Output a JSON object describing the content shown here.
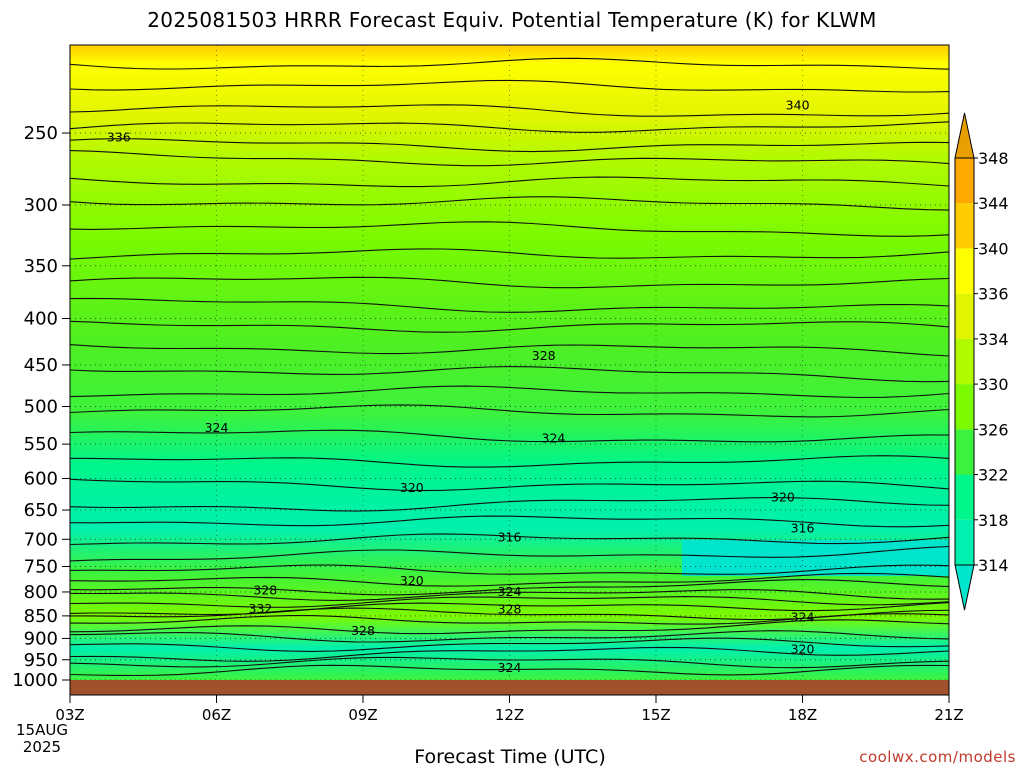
{
  "chart_data": {
    "type": "contour",
    "title": "2025081503 HRRR Forecast Equiv. Potential Temperature (K) for KLWM",
    "xlabel": "Forecast Time (UTC)",
    "ylabel": "",
    "x_ticks": [
      "03Z",
      "06Z",
      "09Z",
      "12Z",
      "15Z",
      "18Z",
      "21Z"
    ],
    "x_hours": [
      3,
      6,
      9,
      12,
      15,
      18,
      21
    ],
    "xlim": [
      3,
      21
    ],
    "date_label": [
      "15AUG",
      "2025"
    ],
    "y_ticks": [
      250,
      300,
      350,
      400,
      450,
      500,
      550,
      600,
      650,
      700,
      750,
      800,
      850,
      900,
      950,
      1000
    ],
    "ylim": [
      200,
      1000
    ],
    "y_scale": "log-pressure",
    "grid": true,
    "colorbar": {
      "levels": [
        314,
        318,
        322,
        326,
        330,
        334,
        336,
        340,
        344,
        348
      ],
      "tick_labels": [
        "314",
        "318",
        "322",
        "326",
        "330",
        "334",
        "336",
        "340",
        "344",
        "348"
      ],
      "extend": "both",
      "colors": [
        "#00e5cc",
        "#00f0b0",
        "#00f58a",
        "#3df23d",
        "#7cfa00",
        "#b2fa00",
        "#e2f500",
        "#ffff00",
        "#ffcc00",
        "#ffa800",
        "#e8a000"
      ]
    },
    "contour_labels": [
      {
        "value": "340",
        "x": 17.9,
        "p": 233
      },
      {
        "value": "336",
        "x": 4.0,
        "p": 253
      },
      {
        "value": "328",
        "x": 12.7,
        "p": 440
      },
      {
        "value": "324",
        "x": 6.0,
        "p": 528
      },
      {
        "value": "324",
        "x": 12.9,
        "p": 542
      },
      {
        "value": "320",
        "x": 10.0,
        "p": 615
      },
      {
        "value": "320",
        "x": 17.6,
        "p": 630
      },
      {
        "value": "316",
        "x": 12.0,
        "p": 697
      },
      {
        "value": "316",
        "x": 18.0,
        "p": 681
      },
      {
        "value": "320",
        "x": 10.0,
        "p": 778
      },
      {
        "value": "328",
        "x": 7.0,
        "p": 797
      },
      {
        "value": "324",
        "x": 12.0,
        "p": 800
      },
      {
        "value": "332",
        "x": 6.9,
        "p": 835
      },
      {
        "value": "328",
        "x": 12.0,
        "p": 836
      },
      {
        "value": "324",
        "x": 18.0,
        "p": 853
      },
      {
        "value": "328",
        "x": 9.0,
        "p": 883
      },
      {
        "value": "320",
        "x": 18.0,
        "p": 926
      },
      {
        "value": "324",
        "x": 12.0,
        "p": 970
      }
    ]
  },
  "watermark": "coolwx.com/models"
}
